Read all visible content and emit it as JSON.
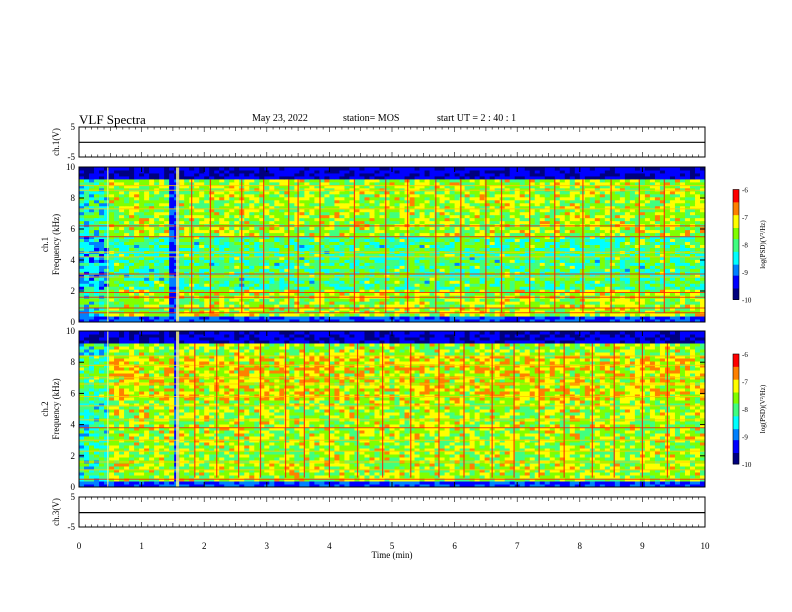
{
  "header": {
    "title": "VLF Spectra",
    "date": "May 23, 2022",
    "station": "station= MOS",
    "start": "start  UT =   2 : 40 : 1"
  },
  "chart_data": [
    {
      "type": "line",
      "panel": "ch1-waveform",
      "ylabel": "ch.1(V)",
      "ylim": [
        -5,
        5
      ],
      "yticks": [
        "5",
        "-5"
      ],
      "x": [
        0,
        10
      ],
      "series": [
        {
          "values": [
            -0.1,
            -0.1
          ]
        }
      ],
      "grid": false
    },
    {
      "type": "heatmap",
      "panel": "ch1-spectrogram",
      "ylabel": "ch.1 Frequency (kHz)",
      "ylim": [
        0,
        10
      ],
      "yticks": [
        "0",
        "2",
        "4",
        "6",
        "8",
        "10"
      ],
      "xlim": [
        0,
        10
      ],
      "data_gaps_min": [
        [
          0.45,
          0.47
        ],
        [
          1.55,
          1.6
        ]
      ],
      "quiet_band_min": [
        1.48,
        1.6
      ],
      "tonal_lines_khz": [
        0.6,
        0.9,
        1.6,
        1.9,
        2.9,
        3.1,
        4.2,
        4.5,
        5.5,
        6.2,
        7.3,
        8.5,
        8.8
      ],
      "impulse_times_min": [
        1.8,
        2.1,
        2.6,
        2.95,
        3.35,
        3.5,
        3.85,
        4.4,
        4.9,
        5.25,
        5.7,
        6.1,
        6.5,
        6.75,
        7.2,
        7.6,
        8.05,
        8.5,
        8.95,
        9.35
      ],
      "colorbar": {
        "label": "log(PSD)(V²/Hz)",
        "ticks": [
          "-6",
          "-7",
          "-8",
          "-9",
          "-10"
        ],
        "range": [
          -10,
          -6
        ]
      }
    },
    {
      "type": "heatmap",
      "panel": "ch2-spectrogram",
      "ylabel": "ch.2 Frequency (kHz)",
      "ylim": [
        0,
        10
      ],
      "yticks": [
        "0",
        "2",
        "4",
        "6",
        "8",
        "10"
      ],
      "xlim": [
        0,
        10
      ],
      "data_gaps_min": [
        [
          0.45,
          0.47
        ],
        [
          1.55,
          1.6
        ]
      ],
      "quiet_band_min": [
        1.5,
        1.6
      ],
      "tonal_lines_khz": [
        0.5,
        1.1,
        1.6,
        2.3,
        3.0,
        3.8,
        4.3,
        5.2,
        5.8,
        6.6,
        7.0,
        7.8,
        8.4
      ],
      "impulse_times_min": [
        1.85,
        2.2,
        2.55,
        2.9,
        3.3,
        3.6,
        4.0,
        4.45,
        4.85,
        5.3,
        5.75,
        6.15,
        6.6,
        6.95,
        7.35,
        7.75,
        8.2,
        8.55,
        9.0,
        9.4
      ],
      "colorbar": {
        "label": "log(PSD)(V²/Hz)",
        "ticks": [
          "-6",
          "-7",
          "-8",
          "-9",
          "-10"
        ],
        "range": [
          -10,
          -6
        ]
      }
    },
    {
      "type": "line",
      "panel": "ch3-waveform",
      "ylabel": "ch.3(V)",
      "ylim": [
        -5,
        5
      ],
      "yticks": [
        "5",
        "-5"
      ],
      "x": [
        0,
        10
      ],
      "series": [
        {
          "values": [
            -0.2,
            -0.2
          ]
        }
      ],
      "xlabel": "Time  (min)",
      "xticks": [
        "0",
        "1",
        "2",
        "3",
        "4",
        "5",
        "6",
        "7",
        "8",
        "9",
        "10"
      ],
      "grid": false
    }
  ],
  "colors": {
    "axis": "#000000",
    "colormap": [
      "#00007f",
      "#0000ff",
      "#0080ff",
      "#00ffff",
      "#40ff80",
      "#80ff00",
      "#ffff00",
      "#ff8000",
      "#ff0000",
      "#ffffff"
    ]
  }
}
